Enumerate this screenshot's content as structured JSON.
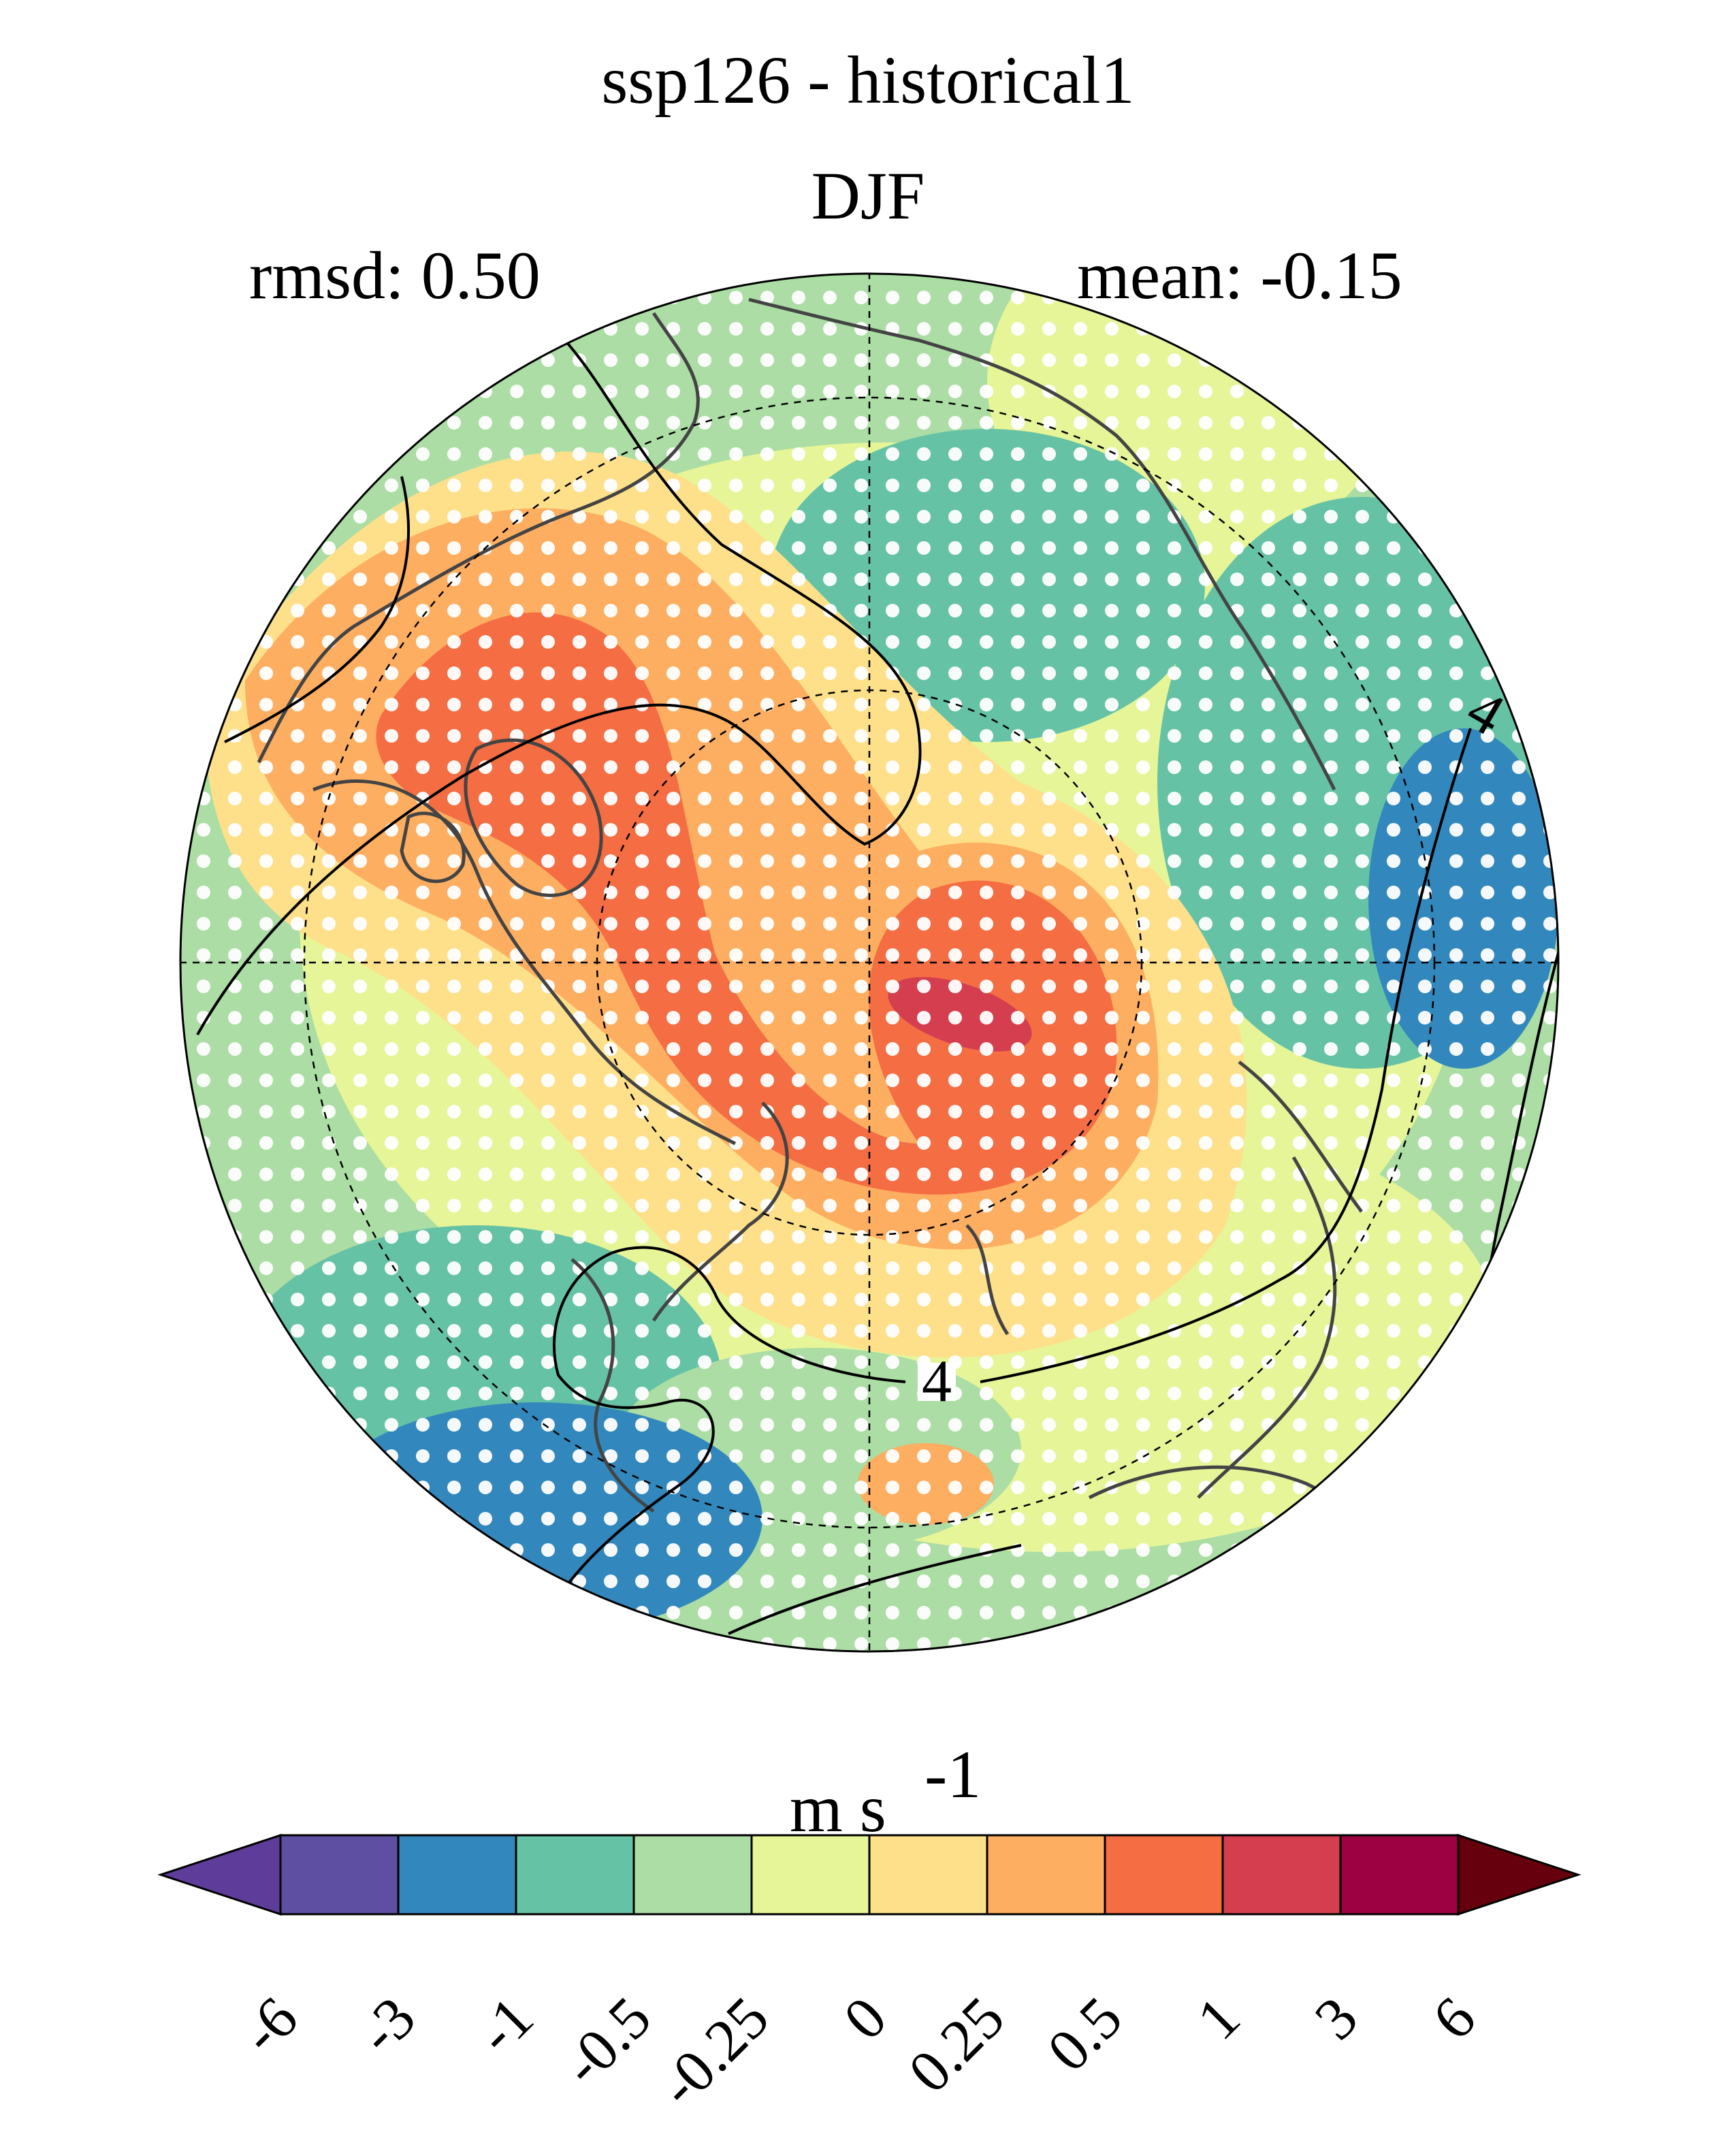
{
  "chart_data": {
    "type": "heatmap",
    "projection": "north polar stereographic",
    "title": "ssp126 - historical1",
    "subtitle": "DJF",
    "stats": {
      "rmsd_label": "rmsd: 0.50",
      "mean_label": "mean: -0.15"
    },
    "colorbar": {
      "unit_text": "m s",
      "unit_exponent": "-1",
      "ticks": [
        "-6",
        "-3",
        "-1",
        "-0.5",
        "-0.25",
        "0",
        "0.25",
        "0.5",
        "1",
        "3",
        "6"
      ],
      "colors": [
        "#5e3c99",
        "#5e4fa2",
        "#3288bd",
        "#66c2a5",
        "#abdda4",
        "#e6f598",
        "#fee08b",
        "#fdae61",
        "#f46d43",
        "#d53e4f",
        "#9e0142",
        "#67000d"
      ],
      "extend": "both"
    },
    "contour_label": "4",
    "stippling": "white dots (significant areas)"
  }
}
